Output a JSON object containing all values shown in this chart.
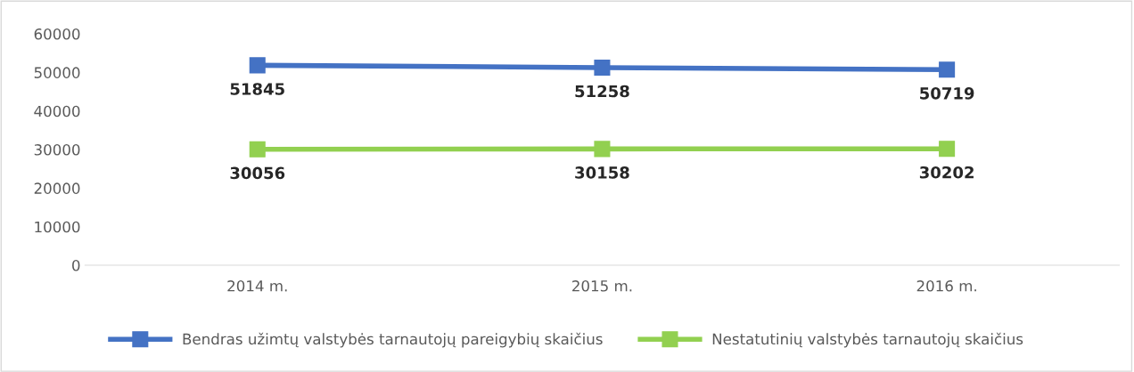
{
  "chart_data": {
    "type": "line",
    "categories": [
      "2014 m.",
      "2015 m.",
      "2016 m."
    ],
    "series": [
      {
        "name": "Bendras užimtų valstybės tarnautojų pareigybių skaičius",
        "color": "#4472c4",
        "values": [
          51845,
          51258,
          50719
        ]
      },
      {
        "name": "Nestatutinių valstybės tarnautojų skaičius",
        "color": "#92d050",
        "values": [
          30056,
          30158,
          30202
        ]
      }
    ],
    "ylim": [
      0,
      60000
    ],
    "yticks": [
      0,
      10000,
      20000,
      30000,
      40000,
      50000,
      60000
    ],
    "grid": false,
    "legend": "bottom",
    "marker": "square",
    "line_style": "solid",
    "data_labels": true
  }
}
